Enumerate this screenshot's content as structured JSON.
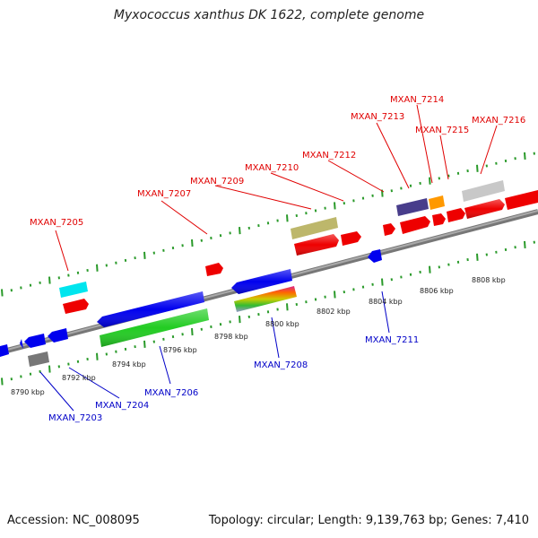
{
  "title": "Myxococcus xanthus DK 1622, complete genome",
  "footer": {
    "accession": "Accession: NC_008095",
    "topology": "Topology: circular; Length: 9,139,763 bp; Genes: 7,410"
  },
  "colors": {
    "forward_label": "#e00000",
    "reverse_label": "#0000c8",
    "backbone": "#888888",
    "tick": "#2a9a2a"
  },
  "kbp_labels": [
    "8790 kbp",
    "8792 kbp",
    "8794 kbp",
    "8796 kbp",
    "8798 kbp",
    "8800 kbp",
    "8802 kbp",
    "8804 kbp",
    "8806 kbp",
    "8808 kbp"
  ],
  "gene_labels": {
    "forward": [
      "MXAN_7205",
      "MXAN_7207",
      "MXAN_7209",
      "MXAN_7210",
      "MXAN_7212",
      "MXAN_7213",
      "MXAN_7214",
      "MXAN_7215",
      "MXAN_7216"
    ],
    "reverse": [
      "MXAN_7203",
      "MXAN_7204",
      "MXAN_7206",
      "MXAN_7208",
      "MXAN_7211"
    ]
  },
  "features": [
    {
      "id": "f-cyan",
      "color": "#00e5ee",
      "strand": "forward"
    },
    {
      "id": "f-red-1",
      "color": "#ee0000",
      "strand": "forward"
    },
    {
      "id": "f-red-2",
      "color": "#ee0000",
      "strand": "forward"
    },
    {
      "id": "f-olive",
      "color": "#bdb76b",
      "strand": "forward"
    },
    {
      "id": "f-red-3",
      "color": "#ee0000",
      "strand": "forward"
    },
    {
      "id": "f-red-4",
      "color": "#ee0000",
      "strand": "forward"
    },
    {
      "id": "f-red-5",
      "color": "#ee0000",
      "strand": "forward"
    },
    {
      "id": "f-slate",
      "color": "#483d8b",
      "strand": "forward"
    },
    {
      "id": "f-orange",
      "color": "#ff9900",
      "strand": "forward"
    },
    {
      "id": "f-red-6",
      "color": "#ee0000",
      "strand": "forward"
    },
    {
      "id": "f-red-7",
      "color": "#ee0000",
      "strand": "forward"
    },
    {
      "id": "f-red-8",
      "color": "#ee0000",
      "strand": "forward"
    },
    {
      "id": "f-silver",
      "color": "#c8c8c8",
      "strand": "forward"
    },
    {
      "id": "f-red-9",
      "color": "#ee0000",
      "strand": "forward"
    },
    {
      "id": "f-red-10",
      "color": "#ee0000",
      "strand": "forward"
    },
    {
      "id": "r-blue-1",
      "color": "#0000ee",
      "strand": "reverse"
    },
    {
      "id": "r-blue-2",
      "color": "#0000ee",
      "strand": "reverse"
    },
    {
      "id": "r-blue-3",
      "color": "#0000ee",
      "strand": "reverse"
    },
    {
      "id": "r-gray",
      "color": "#777777",
      "strand": "reverse"
    },
    {
      "id": "r-blue-4",
      "color": "#0000ee",
      "strand": "reverse"
    },
    {
      "id": "r-green",
      "color": "#22cc22",
      "strand": "reverse"
    },
    {
      "id": "r-blue-5",
      "color": "#0000ee",
      "strand": "reverse"
    },
    {
      "id": "r-rainbow",
      "color": "#dd2288",
      "strand": "reverse"
    },
    {
      "id": "r-blue-6",
      "color": "#0000ee",
      "strand": "reverse"
    }
  ]
}
